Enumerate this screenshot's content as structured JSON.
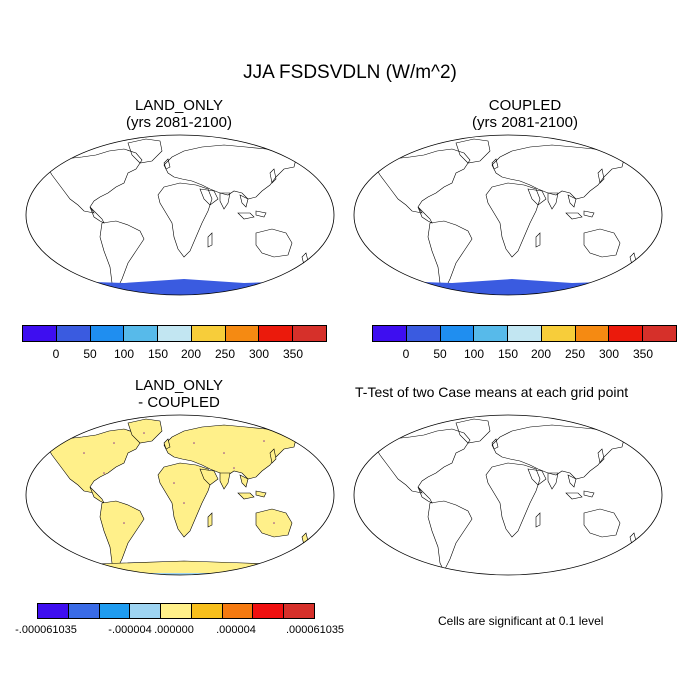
{
  "figure": {
    "title": "JJA FSDSVDLN (W/m^2)"
  },
  "panels": {
    "land_only": {
      "title_line1": "LAND_ONLY",
      "title_line2": "(yrs 2081-2100)"
    },
    "coupled": {
      "title_line1": "COUPLED",
      "title_line2": "(yrs 2081-2100)"
    },
    "difference": {
      "title_line1": "LAND_ONLY",
      "title_line2": "- COUPLED"
    },
    "ttest": {
      "title": "T-Test of two Case means at each grid point",
      "footer": "Cells are significant at 0.1 level"
    }
  },
  "colorbars": {
    "main": {
      "colors": [
        "#3e0ef0",
        "#3a5be0",
        "#1f8ef0",
        "#57baea",
        "#c2e6f2",
        "#f7cd3a",
        "#f58a12",
        "#eb1a0c",
        "#d6302a"
      ],
      "labels": [
        "0",
        "50",
        "100",
        "150",
        "200",
        "250",
        "300",
        "350"
      ]
    },
    "diff": {
      "colors": [
        "#3e0ef0",
        "#3a6be6",
        "#1f9cf0",
        "#9ed4f2",
        "#fff08a",
        "#f7bf1c",
        "#f57a10",
        "#f01010",
        "#d6302a"
      ],
      "labels": [
        "-.000061035",
        "-.000004",
        ".000000",
        ".000004",
        ".000061035"
      ]
    }
  },
  "colors": {
    "ocean": "#ffffff",
    "antarctica": "#3a5be0",
    "diff_land": "#fff08a",
    "diff_antarctica_edge": "#9ed4f2"
  }
}
